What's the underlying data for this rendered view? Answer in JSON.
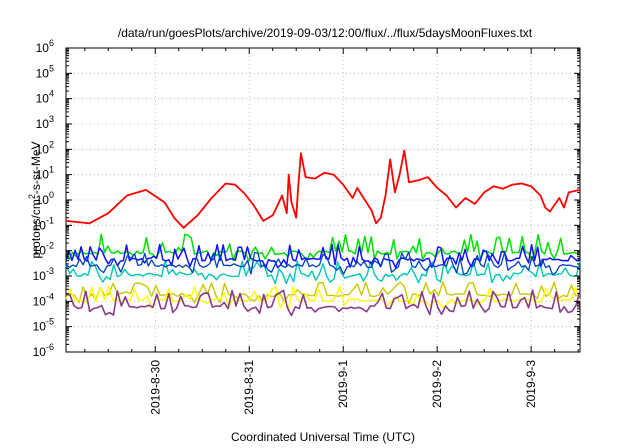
{
  "chart_data": {
    "type": "line",
    "title": "/data/run/goesPlots/archive/2019-09-03/12:00/flux/../flux/5daysMoonFluxes.txt",
    "xlabel": "Coordinated Universal Time (UTC)",
    "ylabel_prefix": "protons/cm",
    "ylabel_sup": "2",
    "ylabel_suffix": "-s-sr-MeV",
    "y_scale": "log",
    "ylim_exp": [
      -6,
      6
    ],
    "ytick_base": "10",
    "ytick_exponents": [
      "-6",
      "-5",
      "-4",
      "-3",
      "-2",
      "-1",
      "0",
      "1",
      "2",
      "3",
      "4",
      "5",
      "6"
    ],
    "xlim_day": [
      -0.95,
      4.52
    ],
    "xticks": [
      {
        "day": 0,
        "label": "2019-8-30"
      },
      {
        "day": 1,
        "label": "2019-8-31"
      },
      {
        "day": 2,
        "label": "2019-9-1"
      },
      {
        "day": 3,
        "label": "2019-9-2"
      },
      {
        "day": 4,
        "label": "2019-9-3"
      }
    ],
    "grid": true,
    "series": [
      {
        "color": "#ff0000",
        "width": 1.8,
        "points": [
          [
            -0.95,
            0.15
          ],
          [
            -0.7,
            0.12
          ],
          [
            -0.5,
            0.3
          ],
          [
            -0.3,
            1.5
          ],
          [
            -0.1,
            2.5
          ],
          [
            0.1,
            0.8
          ],
          [
            0.2,
            0.2
          ],
          [
            0.3,
            0.08
          ],
          [
            0.45,
            0.25
          ],
          [
            0.6,
            1.2
          ],
          [
            0.75,
            4.5
          ],
          [
            0.85,
            4.0
          ],
          [
            0.95,
            1.8
          ],
          [
            1.05,
            0.6
          ],
          [
            1.15,
            0.15
          ],
          [
            1.25,
            0.25
          ],
          [
            1.3,
            0.6
          ],
          [
            1.35,
            1.5
          ],
          [
            1.4,
            0.3
          ],
          [
            1.42,
            10
          ],
          [
            1.45,
            0.8
          ],
          [
            1.5,
            0.2
          ],
          [
            1.52,
            3
          ],
          [
            1.55,
            70
          ],
          [
            1.6,
            8
          ],
          [
            1.7,
            7
          ],
          [
            1.8,
            12
          ],
          [
            1.9,
            10
          ],
          [
            2.0,
            4
          ],
          [
            2.1,
            1.2
          ],
          [
            2.15,
            3
          ],
          [
            2.2,
            1.5
          ],
          [
            2.3,
            0.4
          ],
          [
            2.35,
            0.12
          ],
          [
            2.4,
            0.2
          ],
          [
            2.45,
            1.5
          ],
          [
            2.5,
            40
          ],
          [
            2.55,
            2
          ],
          [
            2.6,
            10
          ],
          [
            2.65,
            90
          ],
          [
            2.7,
            5
          ],
          [
            2.8,
            6
          ],
          [
            2.9,
            8
          ],
          [
            3.0,
            3
          ],
          [
            3.1,
            1.5
          ],
          [
            3.2,
            0.5
          ],
          [
            3.3,
            1.2
          ],
          [
            3.4,
            0.7
          ],
          [
            3.5,
            2
          ],
          [
            3.6,
            3.5
          ],
          [
            3.7,
            2.8
          ],
          [
            3.8,
            4
          ],
          [
            3.9,
            4.5
          ],
          [
            4.0,
            3.5
          ],
          [
            4.1,
            1.5
          ],
          [
            4.15,
            0.5
          ],
          [
            4.2,
            0.35
          ],
          [
            4.3,
            1.2
          ],
          [
            4.35,
            0.5
          ],
          [
            4.4,
            2
          ],
          [
            4.52,
            2.5
          ]
        ]
      },
      {
        "color": "#00e000",
        "width": 1.5,
        "spiky": true,
        "base": 0.0085,
        "spike": 0.045,
        "n": 160,
        "seed": 7
      },
      {
        "color": "#00c8b4",
        "width": 1.4,
        "spiky": true,
        "base": 0.0011,
        "spike": 0.004,
        "n": 140,
        "seed": 19
      },
      {
        "color": "#1010ff",
        "width": 1.5,
        "spiky": true,
        "base": 0.0045,
        "spike": 0.018,
        "n": 170,
        "seed": 3
      },
      {
        "color": "#0040c0",
        "width": 1.3,
        "spiky": true,
        "base": 0.0025,
        "spike": 0.009,
        "n": 150,
        "seed": 11
      },
      {
        "color": "#c8c800",
        "width": 1.4,
        "spiky": true,
        "base": 0.00018,
        "spike": 0.0006,
        "n": 120,
        "seed": 5
      },
      {
        "color": "#ffff00",
        "width": 1.4,
        "spiky": true,
        "base": 0.00011,
        "spike": 0.0004,
        "n": 120,
        "seed": 23
      },
      {
        "color": "#8b3a8b",
        "width": 1.6,
        "spiky": true,
        "base": 6e-05,
        "spike": 0.00028,
        "n": 130,
        "seed": 13
      }
    ]
  }
}
